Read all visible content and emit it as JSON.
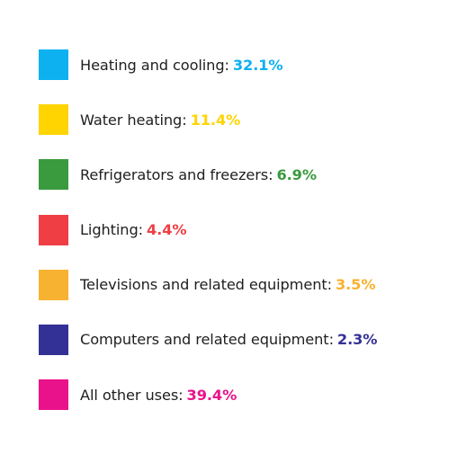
{
  "chart_data": {
    "type": "pie",
    "title": "",
    "categories": [
      "Heating and cooling",
      "Water heating",
      "Refrigerators and freezers",
      "Lighting",
      "Televisions and related equipment",
      "Computers and related equipment",
      "All other uses"
    ],
    "values": [
      32.1,
      11.4,
      6.9,
      4.4,
      3.5,
      2.3,
      39.4
    ],
    "value_labels": [
      "32.1%",
      "11.4%",
      "6.9%",
      "4.4%",
      "3.5%",
      "2.3%",
      "39.4%"
    ],
    "colors": [
      "#0db1f0",
      "#ffd400",
      "#3a9a3e",
      "#ef3f45",
      "#f8b232",
      "#343196",
      "#ea128a"
    ],
    "unit": "%",
    "legend_position": "list"
  }
}
